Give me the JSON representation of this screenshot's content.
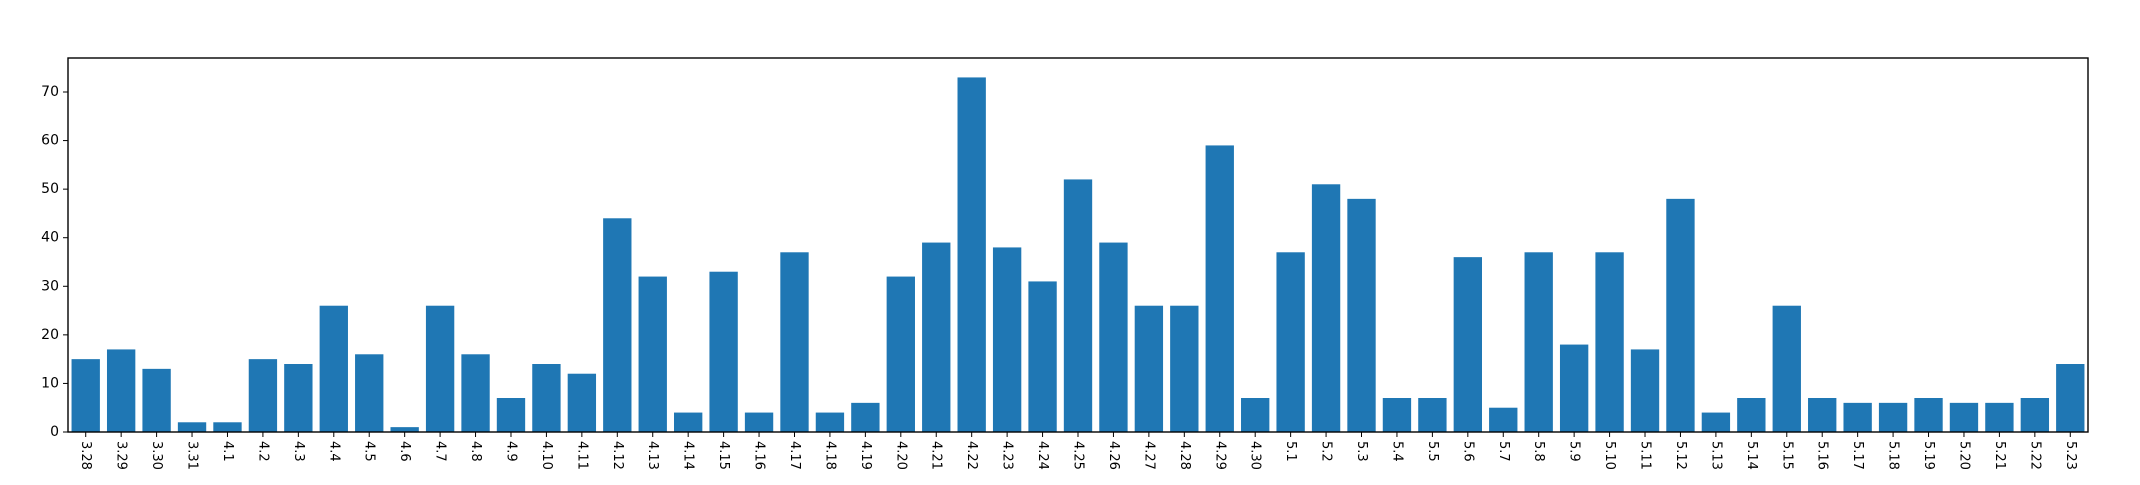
{
  "chart_data": {
    "type": "bar",
    "title": "",
    "xlabel": "",
    "ylabel": "",
    "ylim": [
      0,
      77
    ],
    "yticks": [
      0,
      10,
      20,
      30,
      40,
      50,
      60,
      70
    ],
    "grid": false,
    "bar_color": "#1f77b4",
    "categories": [
      "3.28",
      "3.29",
      "3.30",
      "3.31",
      "4.1",
      "4.2",
      "4.3",
      "4.4",
      "4.5",
      "4.6",
      "4.7",
      "4.8",
      "4.9",
      "4.10",
      "4.11",
      "4.12",
      "4.13",
      "4.14",
      "4.15",
      "4.16",
      "4.17",
      "4.18",
      "4.19",
      "4.20",
      "4.21",
      "4.22",
      "4.23",
      "4.24",
      "4.25",
      "4.26",
      "4.27",
      "4.28",
      "4.29",
      "4.30",
      "5.1",
      "5.2",
      "5.3",
      "5.4",
      "5.5",
      "5.6",
      "5.7",
      "5.8",
      "5.9",
      "5.10",
      "5.11",
      "5.12",
      "5.13",
      "5.14",
      "5.15",
      "5.16",
      "5.17",
      "5.18",
      "5.19",
      "5.20",
      "5.21",
      "5.22",
      "5.23"
    ],
    "values": [
      15,
      17,
      13,
      2,
      2,
      15,
      14,
      26,
      16,
      1,
      26,
      16,
      7,
      14,
      12,
      44,
      32,
      4,
      33,
      4,
      37,
      4,
      6,
      32,
      39,
      73,
      38,
      31,
      52,
      39,
      26,
      26,
      59,
      7,
      37,
      51,
      48,
      7,
      7,
      36,
      5,
      37,
      18,
      37,
      17,
      48,
      4,
      7,
      26,
      7,
      6,
      6,
      7,
      6,
      6,
      7,
      14
    ]
  }
}
